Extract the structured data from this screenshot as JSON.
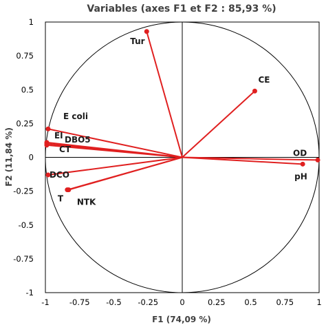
{
  "chart_data": {
    "type": "scatter",
    "title": "Variables (axes F1 et F2 : 85,93 %)",
    "xlabel": "F1 (74,09 %)",
    "ylabel": "F2 (11,84 %)",
    "xlim": [
      -1,
      1
    ],
    "ylim": [
      -1,
      1
    ],
    "x_ticks": [
      "-1",
      "-0.75",
      "-0.5",
      "-0.25",
      "0",
      "0.25",
      "0.5",
      "0.75",
      "1"
    ],
    "y_ticks": [
      "1",
      "0.75",
      "0.5",
      "0.25",
      "0",
      "-0.25",
      "-0.5",
      "-0.75",
      "-1"
    ],
    "grid": false,
    "correlation_circle": true,
    "vector_color": "#e02020",
    "variables": [
      {
        "name": "Tur",
        "x": -0.26,
        "y": 0.93
      },
      {
        "name": "CE",
        "x": 0.53,
        "y": 0.49
      },
      {
        "name": "E coli",
        "x": -0.98,
        "y": 0.21
      },
      {
        "name": "EI",
        "x": -0.99,
        "y": 0.11
      },
      {
        "name": "DBO5",
        "x": -0.99,
        "y": 0.1
      },
      {
        "name": "CT",
        "x": -0.99,
        "y": 0.09
      },
      {
        "name": "OD",
        "x": 0.99,
        "y": -0.02
      },
      {
        "name": "pH",
        "x": 0.88,
        "y": -0.05
      },
      {
        "name": "DCO",
        "x": -0.98,
        "y": -0.13
      },
      {
        "name": "T",
        "x": -0.84,
        "y": -0.24
      },
      {
        "name": "NTK",
        "x": -0.83,
        "y": -0.24
      }
    ]
  }
}
